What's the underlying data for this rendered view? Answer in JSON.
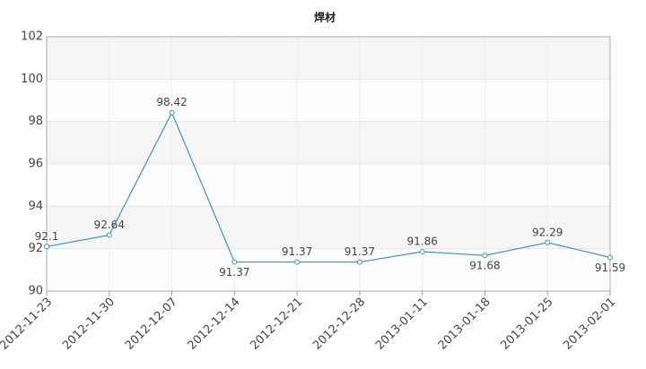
{
  "chart_data": {
    "type": "line",
    "title": "焊材",
    "categories": [
      "2012-11-23",
      "2012-11-30",
      "2012-12-07",
      "2012-12-14",
      "2012-12-21",
      "2012-12-28",
      "2013-01-11",
      "2013-01-18",
      "2013-01-25",
      "2013-02-01"
    ],
    "series": [
      {
        "color": "#3a93c9",
        "values": [
          92.1,
          92.64,
          98.42,
          91.37,
          91.37,
          91.37,
          91.86,
          91.68,
          92.29,
          91.59
        ]
      }
    ],
    "ylim": [
      90,
      102
    ],
    "yticks": [
      90,
      92,
      94,
      96,
      98,
      100,
      102
    ],
    "grid": true
  }
}
